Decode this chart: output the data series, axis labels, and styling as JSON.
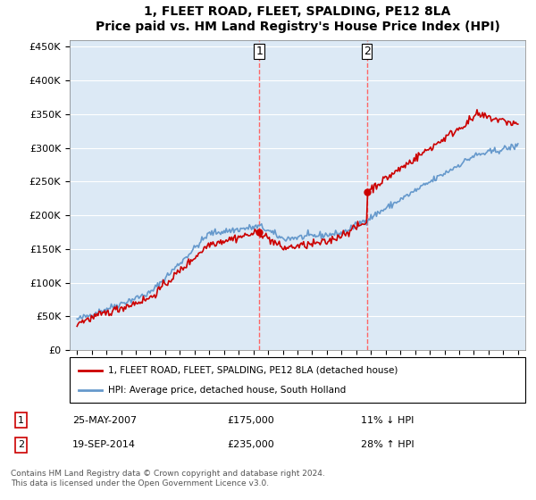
{
  "title": "1, FLEET ROAD, FLEET, SPALDING, PE12 8LA",
  "subtitle": "Price paid vs. HM Land Registry's House Price Index (HPI)",
  "ylabel": "",
  "ylim": [
    0,
    460000
  ],
  "yticks": [
    0,
    50000,
    100000,
    150000,
    200000,
    250000,
    300000,
    350000,
    400000,
    450000
  ],
  "ytick_labels": [
    "£0",
    "£50K",
    "£100K",
    "£150K",
    "£200K",
    "£250K",
    "£300K",
    "£350K",
    "£400K",
    "£450K"
  ],
  "sale1_date": 2007.4,
  "sale1_price": 175000,
  "sale1_label": "1",
  "sale2_date": 2014.72,
  "sale2_price": 235000,
  "sale2_label": "2",
  "line1_color": "#cc0000",
  "line2_color": "#6699cc",
  "vline_color": "#ff6666",
  "background_color": "#dce9f5",
  "plot_bg_color": "#dce9f5",
  "legend_line1": "1, FLEET ROAD, FLEET, SPALDING, PE12 8LA (detached house)",
  "legend_line2": "HPI: Average price, detached house, South Holland",
  "table_row1": [
    "1",
    "25-MAY-2007",
    "£175,000",
    "11% ↓ HPI"
  ],
  "table_row2": [
    "2",
    "19-SEP-2014",
    "£235,000",
    "28% ↑ HPI"
  ],
  "footer": "Contains HM Land Registry data © Crown copyright and database right 2024.\nThis data is licensed under the Open Government Licence v3.0.",
  "xlim_start": 1994.5,
  "xlim_end": 2025.5
}
